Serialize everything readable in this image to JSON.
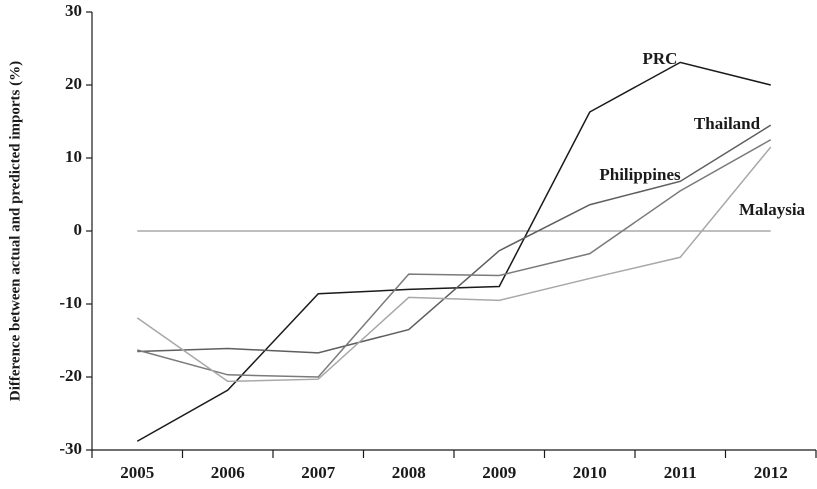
{
  "chart_data": {
    "type": "line",
    "y_label": "Difference between actual and predicted imports (%)",
    "categories": [
      "2005",
      "2006",
      "2007",
      "2008",
      "2009",
      "2010",
      "2011",
      "2012"
    ],
    "series": [
      {
        "name": "PRC",
        "color": "#1a1a1a",
        "values": [
          -28.8,
          -21.8,
          -8.6,
          -8.0,
          -7.6,
          16.3,
          23.1,
          20.0
        ]
      },
      {
        "name": "Thailand",
        "color": "#5e5e5e",
        "values": [
          -16.5,
          -16.1,
          -16.7,
          -13.5,
          -2.7,
          3.6,
          6.8,
          14.5
        ]
      },
      {
        "name": "Philippines",
        "color": "#7a7a7a",
        "values": [
          -16.3,
          -19.7,
          -20.0,
          -5.9,
          -6.1,
          -3.1,
          5.5,
          12.5
        ]
      },
      {
        "name": "Malaysia",
        "color": "#a8a8a8",
        "values": [
          -11.9,
          -20.6,
          -20.3,
          -9.1,
          -9.5,
          -6.5,
          -3.6,
          11.5
        ]
      }
    ],
    "reference_line": 0,
    "ylim": [
      -30,
      30
    ],
    "yticks": [
      -30,
      -20,
      -10,
      0,
      10,
      20,
      30
    ]
  }
}
